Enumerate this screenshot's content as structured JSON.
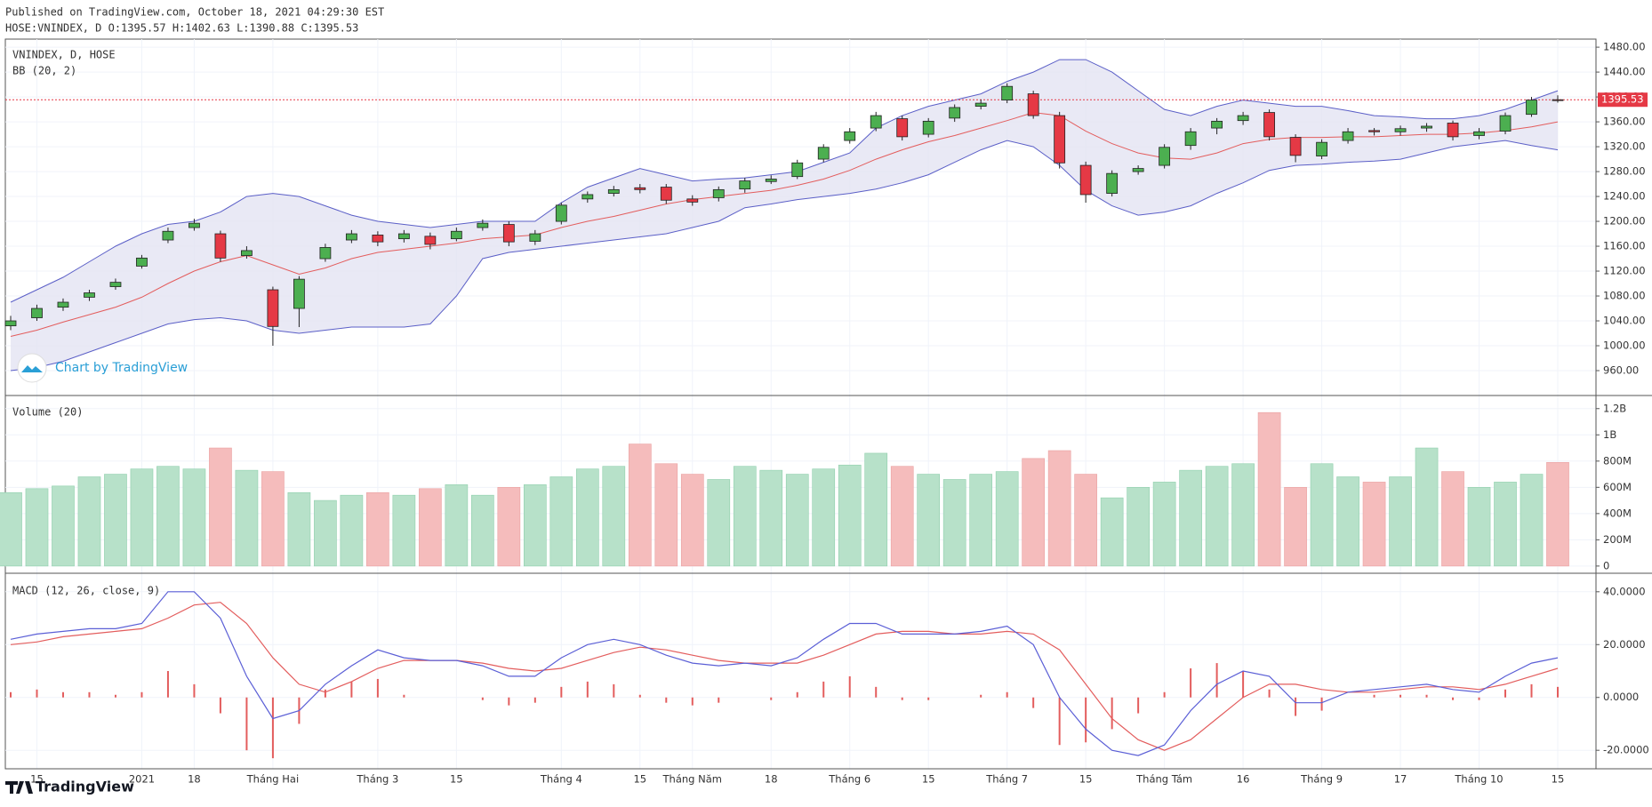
{
  "header": {
    "published": "Published on TradingView.com, October 18, 2021 04:29:30 EST",
    "quote": "HOSE:VNINDEX, D O:1395.57 H:1402.63 L:1390.88 C:1395.53"
  },
  "footer": {
    "brand": "TradingView",
    "watermark": "Chart by TradingView"
  },
  "chart_data": [
    {
      "type": "candlestick",
      "title": "VNINDEX, D, HOSE",
      "indicator": "BB (20, 2)",
      "open": [
        1032,
        1045,
        1062,
        1078,
        1095,
        1128,
        1170,
        1190,
        1180,
        1145,
        1090,
        1060,
        1140,
        1170,
        1178,
        1172,
        1176,
        1172,
        1190,
        1195,
        1168,
        1200,
        1236,
        1245,
        1254,
        1255,
        1236,
        1238,
        1252,
        1264,
        1272,
        1300,
        1330,
        1350,
        1365,
        1340,
        1366,
        1385,
        1395,
        1405,
        1370,
        1290,
        1245,
        1280,
        1290,
        1322,
        1350,
        1362,
        1375,
        1335,
        1305,
        1330,
        1346,
        1344,
        1350,
        1358,
        1338,
        1345,
        1372,
        1395.57
      ],
      "high": [
        1048,
        1066,
        1076,
        1090,
        1108,
        1146,
        1190,
        1204,
        1185,
        1160,
        1095,
        1112,
        1164,
        1186,
        1184,
        1186,
        1182,
        1190,
        1203,
        1200,
        1186,
        1230,
        1248,
        1257,
        1260,
        1260,
        1242,
        1256,
        1270,
        1274,
        1299,
        1324,
        1350,
        1376,
        1370,
        1366,
        1388,
        1396,
        1422,
        1410,
        1376,
        1296,
        1282,
        1290,
        1324,
        1350,
        1366,
        1376,
        1380,
        1340,
        1332,
        1350,
        1350,
        1354,
        1358,
        1362,
        1350,
        1375,
        1400,
        1402.63
      ],
      "low": [
        1025,
        1040,
        1056,
        1072,
        1090,
        1124,
        1165,
        1185,
        1135,
        1140,
        1000,
        1030,
        1135,
        1165,
        1160,
        1166,
        1155,
        1168,
        1185,
        1160,
        1162,
        1195,
        1230,
        1240,
        1245,
        1228,
        1225,
        1232,
        1246,
        1260,
        1268,
        1295,
        1325,
        1345,
        1330,
        1335,
        1360,
        1380,
        1390,
        1365,
        1285,
        1230,
        1240,
        1275,
        1285,
        1315,
        1340,
        1355,
        1330,
        1295,
        1300,
        1325,
        1338,
        1338,
        1344,
        1330,
        1332,
        1340,
        1368,
        1390.88
      ],
      "close": [
        1040,
        1060,
        1070,
        1085,
        1102,
        1141,
        1184,
        1197,
        1141,
        1153,
        1031,
        1107,
        1158,
        1180,
        1167,
        1180,
        1163,
        1184,
        1197,
        1167,
        1180,
        1226,
        1243,
        1251,
        1251,
        1234,
        1231,
        1251,
        1265,
        1268,
        1294,
        1319,
        1344,
        1370,
        1336,
        1361,
        1383,
        1390,
        1417,
        1370,
        1294,
        1243,
        1277,
        1285,
        1319,
        1344,
        1361,
        1370,
        1336,
        1306,
        1327,
        1344,
        1344,
        1349,
        1353,
        1336,
        1344,
        1370,
        1395,
        1395.53
      ],
      "bb_upper": [
        1070,
        1090,
        1110,
        1135,
        1160,
        1180,
        1195,
        1200,
        1215,
        1240,
        1245,
        1240,
        1225,
        1210,
        1200,
        1195,
        1190,
        1195,
        1200,
        1200,
        1200,
        1230,
        1255,
        1270,
        1285,
        1275,
        1265,
        1268,
        1270,
        1275,
        1280,
        1295,
        1310,
        1350,
        1370,
        1385,
        1395,
        1405,
        1425,
        1440,
        1460,
        1460,
        1440,
        1410,
        1380,
        1370,
        1385,
        1395,
        1390,
        1385,
        1385,
        1378,
        1370,
        1368,
        1365,
        1365,
        1370,
        1380,
        1395,
        1410
      ],
      "bb_basis": [
        1015,
        1025,
        1038,
        1050,
        1062,
        1078,
        1100,
        1120,
        1135,
        1145,
        1130,
        1115,
        1125,
        1140,
        1150,
        1155,
        1160,
        1165,
        1172,
        1175,
        1178,
        1190,
        1200,
        1208,
        1218,
        1228,
        1235,
        1240,
        1245,
        1250,
        1258,
        1268,
        1282,
        1300,
        1315,
        1328,
        1338,
        1350,
        1362,
        1375,
        1370,
        1345,
        1325,
        1310,
        1302,
        1300,
        1310,
        1325,
        1332,
        1335,
        1335,
        1336,
        1336,
        1338,
        1340,
        1340,
        1342,
        1346,
        1352,
        1360
      ],
      "bb_lower": [
        960,
        965,
        975,
        990,
        1005,
        1020,
        1035,
        1042,
        1045,
        1040,
        1025,
        1020,
        1025,
        1030,
        1030,
        1030,
        1035,
        1080,
        1140,
        1150,
        1155,
        1160,
        1165,
        1170,
        1175,
        1180,
        1190,
        1200,
        1222,
        1228,
        1235,
        1240,
        1245,
        1252,
        1262,
        1275,
        1295,
        1315,
        1330,
        1320,
        1290,
        1250,
        1225,
        1210,
        1215,
        1225,
        1245,
        1262,
        1282,
        1290,
        1292,
        1295,
        1297,
        1300,
        1310,
        1320,
        1325,
        1330,
        1322,
        1315
      ],
      "last_value": 1395.53,
      "up_color": "#4caf50",
      "down_color": "#e53945",
      "band_color": "#5b5fc7",
      "basis_color": "#e35d5d",
      "band_fill": "#e3e3f3",
      "ylim": [
        920,
        1493
      ],
      "yticks": [
        {
          "value": 960,
          "label": "960.00"
        },
        {
          "value": 1000,
          "label": "1000.00"
        },
        {
          "value": 1040,
          "label": "1040.00"
        },
        {
          "value": 1080,
          "label": "1080.00"
        },
        {
          "value": 1120,
          "label": "1120.00"
        },
        {
          "value": 1160,
          "label": "1160.00"
        },
        {
          "value": 1200,
          "label": "1200.00"
        },
        {
          "value": 1240,
          "label": "1240.00"
        },
        {
          "value": 1280,
          "label": "1280.00"
        },
        {
          "value": 1320,
          "label": "1320.00"
        },
        {
          "value": 1360,
          "label": "1360.00"
        },
        {
          "value": 1400,
          "label": "1400.00"
        },
        {
          "value": 1440,
          "label": "1440.00"
        },
        {
          "value": 1480,
          "label": "1480.00"
        }
      ],
      "grid": true
    },
    {
      "type": "bar",
      "title": "Volume (20)",
      "values": [
        560000000,
        590000000,
        610000000,
        680000000,
        700000000,
        740000000,
        760000000,
        740000000,
        900000000,
        730000000,
        720000000,
        560000000,
        500000000,
        540000000,
        560000000,
        540000000,
        590000000,
        620000000,
        540000000,
        600000000,
        620000000,
        680000000,
        740000000,
        760000000,
        930000000,
        780000000,
        700000000,
        660000000,
        760000000,
        730000000,
        700000000,
        740000000,
        770000000,
        860000000,
        760000000,
        700000000,
        660000000,
        700000000,
        720000000,
        820000000,
        880000000,
        700000000,
        520000000,
        600000000,
        640000000,
        730000000,
        760000000,
        780000000,
        1170000000,
        600000000,
        780000000,
        680000000,
        640000000,
        680000000,
        900000000,
        720000000,
        600000000,
        640000000,
        700000000,
        790000000
      ],
      "up_color": "#b7e1c9",
      "down_color": "#f5bcbc",
      "ylim": [
        -55000000,
        1300000000
      ],
      "yticks": [
        0,
        {
          "value": 200000000,
          "label": "200M"
        },
        {
          "value": 400000000,
          "label": "400M"
        },
        {
          "value": 600000000,
          "label": "600M"
        },
        {
          "value": 800000000,
          "label": "800M"
        },
        {
          "value": 1000000000,
          "label": "1B"
        },
        {
          "value": 1200000000,
          "label": "1.2B"
        }
      ],
      "grid": true
    },
    {
      "type": "macd",
      "title": "MACD (12, 26, close, 9)",
      "categories": [
        null,
        "15",
        null,
        null,
        null,
        "2021",
        null,
        "18",
        null,
        null,
        "Tháng Hai",
        null,
        null,
        null,
        "Tháng 3",
        null,
        null,
        "15",
        null,
        null,
        null,
        "Tháng 4",
        null,
        null,
        "15",
        null,
        "Tháng Năm",
        null,
        null,
        "18",
        null,
        null,
        "Tháng 6",
        null,
        null,
        "15",
        null,
        null,
        "Tháng 7",
        null,
        null,
        "15",
        null,
        null,
        "Tháng Tám",
        null,
        null,
        "16",
        null,
        null,
        "Tháng 9",
        null,
        null,
        "17",
        null,
        null,
        "Tháng 10",
        null,
        null,
        "15"
      ],
      "macd": [
        22,
        24,
        25,
        26,
        26,
        28,
        40,
        40,
        30,
        8,
        -8,
        -5,
        5,
        12,
        18,
        15,
        14,
        14,
        12,
        8,
        8,
        15,
        20,
        22,
        20,
        16,
        13,
        12,
        13,
        12,
        15,
        22,
        28,
        28,
        24,
        24,
        24,
        25,
        27,
        20,
        0,
        -12,
        -20,
        -22,
        -18,
        -5,
        5,
        10,
        8,
        -2,
        -2,
        2,
        3,
        4,
        5,
        3,
        2,
        8,
        13,
        15
      ],
      "signal": [
        20,
        21,
        23,
        24,
        25,
        26,
        30,
        35,
        36,
        28,
        15,
        5,
        2,
        6,
        11,
        14,
        14,
        14,
        13,
        11,
        10,
        11,
        14,
        17,
        19,
        18,
        16,
        14,
        13,
        13,
        13,
        16,
        20,
        24,
        25,
        25,
        24,
        24,
        25,
        24,
        18,
        5,
        -8,
        -16,
        -20,
        -16,
        -8,
        0,
        5,
        5,
        3,
        2,
        2,
        3,
        4,
        4,
        3,
        5,
        8,
        11
      ],
      "histogram": [
        2,
        3,
        2,
        2,
        1,
        2,
        10,
        5,
        -6,
        -20,
        -23,
        -10,
        3,
        6,
        7,
        1,
        0,
        0,
        -1,
        -3,
        -2,
        4,
        6,
        5,
        1,
        -2,
        -3,
        -2,
        0,
        -1,
        2,
        6,
        8,
        4,
        -1,
        -1,
        0,
        1,
        2,
        -4,
        -18,
        -17,
        -12,
        -6,
        2,
        11,
        13,
        10,
        3,
        -7,
        -5,
        0,
        1,
        1,
        1,
        -1,
        -1,
        3,
        5,
        4
      ],
      "macd_color": "#5b5fd6",
      "signal_color": "#e35d5d",
      "histogram_color": "#e35d5d",
      "ylim": [
        -27,
        47
      ],
      "yticks": [
        {
          "value": -20,
          "label": "-20.0000"
        },
        {
          "value": 0,
          "label": "0.0000"
        },
        {
          "value": 20,
          "label": "20.0000"
        },
        {
          "value": 40,
          "label": "40.0000"
        }
      ],
      "grid": true
    }
  ]
}
